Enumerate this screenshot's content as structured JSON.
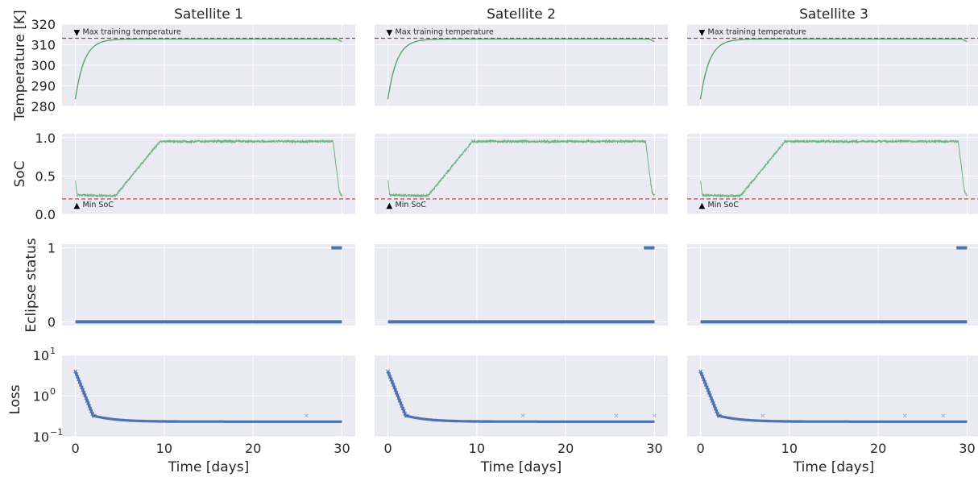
{
  "figure": {
    "xlabel": "Time [days]",
    "colors": {
      "panel_bg": "#eaeaf2",
      "grid": "#ffffff",
      "green": "#55a868",
      "blue": "#4c72b0",
      "red_dash": "#d62728",
      "text": "#262626"
    }
  },
  "columns": [
    {
      "title": "Satellite 1",
      "loss_outliers": [
        [
          26,
          0.33
        ]
      ]
    },
    {
      "title": "Satellite 2",
      "loss_outliers": [
        [
          15.2,
          0.33
        ],
        [
          25.7,
          0.33
        ],
        [
          30,
          0.33
        ]
      ]
    },
    {
      "title": "Satellite 3",
      "loss_outliers": [
        [
          7,
          0.33
        ],
        [
          23,
          0.33
        ],
        [
          27.3,
          0.33
        ]
      ]
    }
  ],
  "chart_data": {
    "type": "line",
    "x_axis": {
      "label": "Time [days]",
      "lim": [
        -1.5,
        31.5
      ],
      "ticks": [
        0,
        10,
        20,
        30
      ]
    },
    "rows": [
      {
        "name": "temperature",
        "ylabel": "Temperature [K]",
        "ylim": [
          280,
          320
        ],
        "yticks": [
          280,
          290,
          300,
          310,
          320
        ],
        "ytick_labels": [
          "280",
          "290",
          "300",
          "310",
          "320"
        ],
        "series_color": "green",
        "threshold": {
          "value": 313.15,
          "label": "Max training temperature",
          "marker": "▼"
        },
        "curve": {
          "start": 283.5,
          "plateau": 312.8,
          "rise_tau_days": 1.0,
          "end": 311.5
        }
      },
      {
        "name": "soc",
        "ylabel": "SoC",
        "ylim": [
          0,
          1.05
        ],
        "yticks": [
          0.0,
          0.5,
          1.0
        ],
        "ytick_labels": [
          "0.0",
          "0.5",
          "1.0"
        ],
        "series_color": "green",
        "threshold": {
          "value": 0.2,
          "label": "Min SoC",
          "marker": "▲"
        },
        "points": [
          [
            0,
            0.45
          ],
          [
            0.2,
            0.25
          ],
          [
            4.5,
            0.24
          ],
          [
            9.5,
            0.95
          ],
          [
            29,
            0.95
          ],
          [
            29.7,
            0.3
          ],
          [
            30,
            0.24
          ]
        ]
      },
      {
        "name": "eclipse",
        "ylabel": "Eclipse status",
        "ylim": [
          -0.05,
          1.05
        ],
        "yticks": [
          0,
          1
        ],
        "ytick_labels": [
          "0",
          "1"
        ],
        "series_color": "blue",
        "segments": [
          {
            "x": [
              0,
              30
            ],
            "y": 0
          },
          {
            "x": [
              28.8,
              30
            ],
            "y": 1
          }
        ]
      },
      {
        "name": "loss",
        "ylabel": "Loss",
        "scale": "log",
        "ylim": [
          0.1,
          10
        ],
        "yticks": [
          0.1,
          1,
          10
        ],
        "ytick_labels": [
          "10",
          "10",
          "10"
        ],
        "ytick_exponents": [
          "−1",
          "0",
          "1"
        ],
        "series_color": "blue",
        "curve": {
          "start": 4.0,
          "knee_day": 2.0,
          "knee_value": 0.33,
          "floor": 0.235
        }
      }
    ]
  }
}
